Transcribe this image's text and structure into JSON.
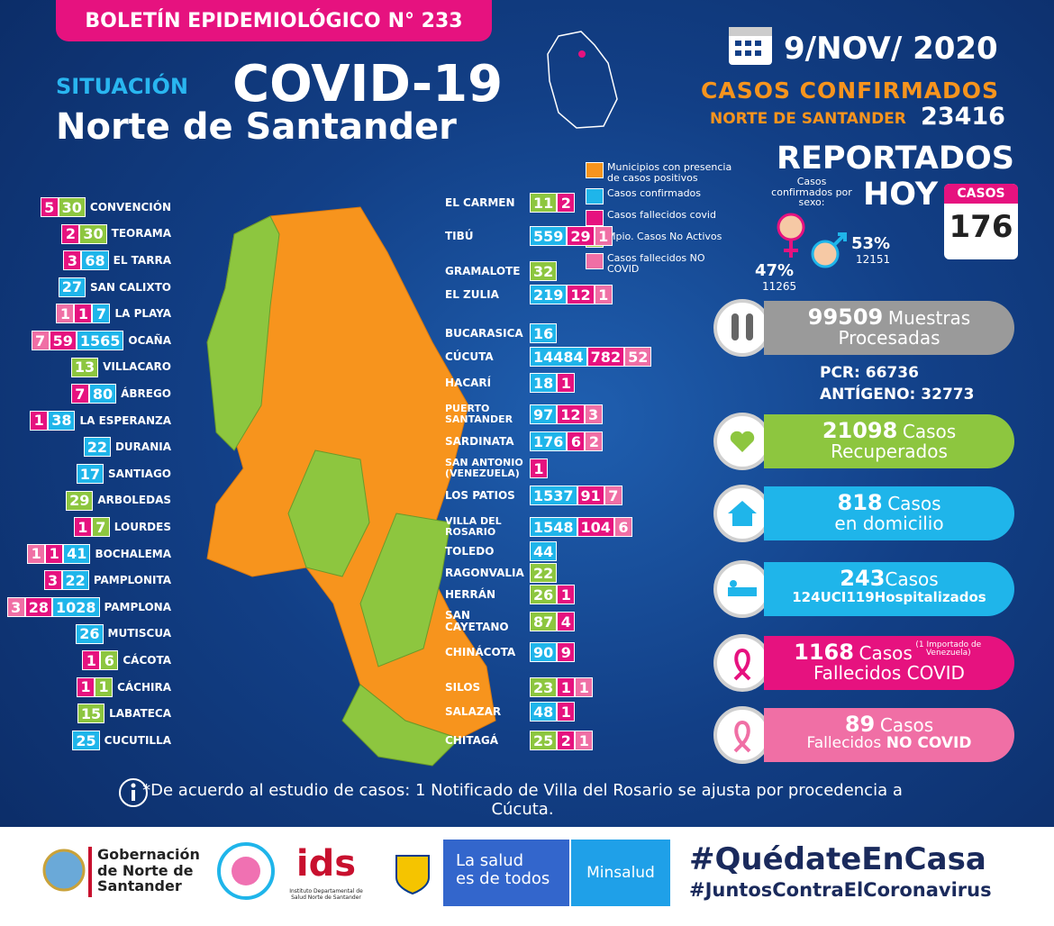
{
  "header": {
    "bulletin_label": "BOLETÍN EPIDEMIOLÓGICO",
    "bulletin_number": "N° 233",
    "situation": "SITUACIÓN",
    "title": "COVID-19",
    "region": "Norte de Santander"
  },
  "date": "9/NOV/ 2020",
  "confirmed": {
    "label": "CASOS CONFIRMADOS",
    "region": "NORTE DE SANTANDER",
    "total": 23416
  },
  "reported": {
    "title": "REPORTADOS",
    "today": "HOY",
    "by_sex_label": "Casos confirmados por sexo:",
    "female_pct": "47%",
    "female_count": 11265,
    "male_pct": "53%",
    "male_count": 12151,
    "casos_label": "CASOS",
    "casos_today": 176
  },
  "legend": [
    {
      "label": "Municipios con presencia de casos positivos",
      "color": "#f7941d"
    },
    {
      "label": "Casos confirmados",
      "color": "#1fb5ea"
    },
    {
      "label": "Casos fallecidos covid",
      "color": "#e6127f"
    },
    {
      "label": "Mpio. Casos No Activos",
      "color": "#8dc63f"
    },
    {
      "label": "Casos fallecidos NO COVID",
      "color": "#f06fa5"
    }
  ],
  "municipalities_left": [
    {
      "name": "CONVENCIÓN",
      "boxes": [
        {
          "value": 5,
          "color": "#e6127f"
        },
        {
          "value": 30,
          "color": "#8dc63f"
        }
      ]
    },
    {
      "name": "TEORAMA",
      "boxes": [
        {
          "value": 2,
          "color": "#e6127f"
        },
        {
          "value": 30,
          "color": "#8dc63f"
        }
      ]
    },
    {
      "name": "EL TARRA",
      "boxes": [
        {
          "value": 3,
          "color": "#e6127f"
        },
        {
          "value": 68,
          "color": "#1fb5ea"
        }
      ]
    },
    {
      "name": "SAN CALIXTO",
      "boxes": [
        {
          "value": 27,
          "color": "#1fb5ea"
        }
      ]
    },
    {
      "name": "LA PLAYA",
      "boxes": [
        {
          "value": 1,
          "color": "#f06fa5"
        },
        {
          "value": 1,
          "color": "#e6127f"
        },
        {
          "value": 7,
          "color": "#1fb5ea"
        }
      ]
    },
    {
      "name": "OCAÑA",
      "boxes": [
        {
          "value": 7,
          "color": "#f06fa5"
        },
        {
          "value": 59,
          "color": "#e6127f"
        },
        {
          "value": 1565,
          "color": "#1fb5ea"
        }
      ]
    },
    {
      "name": "VILLACARO",
      "boxes": [
        {
          "value": 13,
          "color": "#8dc63f"
        }
      ]
    },
    {
      "name": "ÁBREGO",
      "boxes": [
        {
          "value": 7,
          "color": "#e6127f"
        },
        {
          "value": 80,
          "color": "#1fb5ea"
        }
      ]
    },
    {
      "name": "LA ESPERANZA",
      "boxes": [
        {
          "value": 1,
          "color": "#e6127f"
        },
        {
          "value": 38,
          "color": "#1fb5ea"
        }
      ]
    },
    {
      "name": "DURANIA",
      "boxes": [
        {
          "value": 22,
          "color": "#1fb5ea"
        }
      ]
    },
    {
      "name": "SANTIAGO",
      "boxes": [
        {
          "value": 17,
          "color": "#1fb5ea"
        }
      ]
    },
    {
      "name": "ARBOLEDAS",
      "boxes": [
        {
          "value": 29,
          "color": "#8dc63f"
        }
      ]
    },
    {
      "name": "LOURDES",
      "boxes": [
        {
          "value": 1,
          "color": "#e6127f"
        },
        {
          "value": 7,
          "color": "#8dc63f"
        }
      ]
    },
    {
      "name": "BOCHALEMA",
      "boxes": [
        {
          "value": 1,
          "color": "#f06fa5"
        },
        {
          "value": 1,
          "color": "#e6127f"
        },
        {
          "value": 41,
          "color": "#1fb5ea"
        }
      ]
    },
    {
      "name": "PAMPLONITA",
      "boxes": [
        {
          "value": 3,
          "color": "#e6127f"
        },
        {
          "value": 22,
          "color": "#1fb5ea"
        }
      ]
    },
    {
      "name": "PAMPLONA",
      "boxes": [
        {
          "value": 3,
          "color": "#f06fa5"
        },
        {
          "value": 28,
          "color": "#e6127f"
        },
        {
          "value": 1028,
          "color": "#1fb5ea"
        }
      ]
    },
    {
      "name": "MUTISCUA",
      "boxes": [
        {
          "value": 26,
          "color": "#1fb5ea"
        }
      ]
    },
    {
      "name": "CÁCOTA",
      "boxes": [
        {
          "value": 1,
          "color": "#e6127f"
        },
        {
          "value": 6,
          "color": "#8dc63f"
        }
      ]
    },
    {
      "name": "CÁCHIRA",
      "boxes": [
        {
          "value": 1,
          "color": "#e6127f"
        },
        {
          "value": 1,
          "color": "#8dc63f"
        }
      ]
    },
    {
      "name": "LABATECA",
      "boxes": [
        {
          "value": 15,
          "color": "#8dc63f"
        }
      ]
    },
    {
      "name": "CUCUTILLA",
      "boxes": [
        {
          "value": 25,
          "color": "#1fb5ea"
        }
      ]
    }
  ],
  "municipalities_right": [
    {
      "name": "EL CARMEN",
      "boxes": [
        {
          "value": 11,
          "color": "#8dc63f"
        },
        {
          "value": 2,
          "color": "#e6127f"
        }
      ]
    },
    {
      "name": "TIBÚ",
      "boxes": [
        {
          "value": 559,
          "color": "#1fb5ea"
        },
        {
          "value": 29,
          "color": "#e6127f"
        },
        {
          "value": 1,
          "color": "#f06fa5"
        }
      ]
    },
    {
      "name": "GRAMALOTE",
      "boxes": [
        {
          "value": 32,
          "color": "#8dc63f"
        }
      ]
    },
    {
      "name": "EL ZULIA",
      "boxes": [
        {
          "value": 219,
          "color": "#1fb5ea"
        },
        {
          "value": 12,
          "color": "#e6127f"
        },
        {
          "value": 1,
          "color": "#f06fa5"
        }
      ]
    },
    {
      "name": "BUCARASICA",
      "boxes": [
        {
          "value": 16,
          "color": "#1fb5ea"
        }
      ]
    },
    {
      "name": "CÚCUTA",
      "boxes": [
        {
          "value": 14484,
          "color": "#1fb5ea"
        },
        {
          "value": 782,
          "color": "#e6127f"
        },
        {
          "value": 52,
          "color": "#f06fa5"
        }
      ]
    },
    {
      "name": "HACARÍ",
      "boxes": [
        {
          "value": 18,
          "color": "#1fb5ea"
        },
        {
          "value": 1,
          "color": "#e6127f"
        }
      ]
    },
    {
      "name": "PUERTO SANTANDER",
      "boxes": [
        {
          "value": 97,
          "color": "#1fb5ea"
        },
        {
          "value": 12,
          "color": "#e6127f"
        },
        {
          "value": 3,
          "color": "#f06fa5"
        }
      ]
    },
    {
      "name": "SARDINATA",
      "boxes": [
        {
          "value": 176,
          "color": "#1fb5ea"
        },
        {
          "value": 6,
          "color": "#e6127f"
        },
        {
          "value": 2,
          "color": "#f06fa5"
        }
      ]
    },
    {
      "name": "SAN ANTONIO (VENEZUELA)",
      "boxes": [
        {
          "value": 1,
          "color": "#e6127f"
        }
      ]
    },
    {
      "name": "LOS PATIOS",
      "boxes": [
        {
          "value": 1537,
          "color": "#1fb5ea"
        },
        {
          "value": 91,
          "color": "#e6127f"
        },
        {
          "value": 7,
          "color": "#f06fa5"
        }
      ]
    },
    {
      "name": "VILLA DEL ROSARIO",
      "boxes": [
        {
          "value": 1548,
          "color": "#1fb5ea"
        },
        {
          "value": 104,
          "color": "#e6127f"
        },
        {
          "value": 6,
          "color": "#f06fa5"
        }
      ]
    },
    {
      "name": "TOLEDO",
      "boxes": [
        {
          "value": 44,
          "color": "#1fb5ea"
        }
      ]
    },
    {
      "name": "RAGONVALIA",
      "boxes": [
        {
          "value": 22,
          "color": "#8dc63f"
        }
      ]
    },
    {
      "name": "HERRÁN",
      "boxes": [
        {
          "value": 26,
          "color": "#8dc63f"
        },
        {
          "value": 1,
          "color": "#e6127f"
        }
      ]
    },
    {
      "name": "SAN CAYETANO",
      "boxes": [
        {
          "value": 87,
          "color": "#8dc63f"
        },
        {
          "value": 4,
          "color": "#e6127f"
        }
      ]
    },
    {
      "name": "CHINÁCOTA",
      "boxes": [
        {
          "value": 90,
          "color": "#1fb5ea"
        },
        {
          "value": 9,
          "color": "#e6127f"
        }
      ]
    },
    {
      "name": "SILOS",
      "boxes": [
        {
          "value": 23,
          "color": "#8dc63f"
        },
        {
          "value": 1,
          "color": "#e6127f"
        },
        {
          "value": 1,
          "color": "#f06fa5"
        }
      ]
    },
    {
      "name": "SALAZAR",
      "boxes": [
        {
          "value": 48,
          "color": "#1fb5ea"
        },
        {
          "value": 1,
          "color": "#e6127f"
        }
      ]
    },
    {
      "name": "CHITAGÁ",
      "boxes": [
        {
          "value": 25,
          "color": "#8dc63f"
        },
        {
          "value": 2,
          "color": "#e6127f"
        },
        {
          "value": 1,
          "color": "#f06fa5"
        }
      ]
    }
  ],
  "stats": {
    "samples": {
      "value": 99509,
      "label_top": "Muestras",
      "label_bottom": "Procesadas"
    },
    "pcr": {
      "label": "PCR:",
      "value": 66736
    },
    "antigen": {
      "label": "ANTÍGENO:",
      "value": 32773
    },
    "recovered": {
      "value": 21098,
      "label_top": "Casos",
      "label_bottom": "Recuperados"
    },
    "home": {
      "value": 818,
      "label_top": "Casos",
      "label_bottom": "en domicilio"
    },
    "hospital": {
      "value": 243,
      "label_top": "Casos",
      "icu": 124,
      "icu_label": "UCI",
      "hosp": 119,
      "hosp_label": "Hospitalizados"
    },
    "deaths": {
      "value": 1168,
      "label_top": "Casos",
      "note": "(1 Importado de Venezuela)",
      "label_bottom": "Fallecidos COVID"
    },
    "deaths_non_covid": {
      "value": 89,
      "label_top": "Casos",
      "label_bottom": "Fallecidos",
      "label_strong": "NO COVID"
    }
  },
  "footnote": "*De acuerdo al estudio de casos: 1 Notificado de Villa del Rosario se ajusta por procedencia a Cúcuta.",
  "footer": {
    "gov_lines": [
      "Gobernación",
      "de Norte de",
      "Santander"
    ],
    "ids_name": "Instituto Departamental de Salud Norte de Santander",
    "slogan_lines": [
      "La salud",
      "es de todos"
    ],
    "ministry": "Minsalud",
    "hashtag1": "#QuédateEnCasa",
    "hashtag2": "#JuntosContraElCoronavirus"
  }
}
